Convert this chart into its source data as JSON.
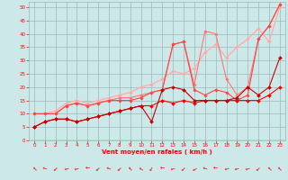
{
  "xlabel": "Vent moyen/en rafales ( km/h )",
  "x": [
    0,
    1,
    2,
    3,
    4,
    5,
    6,
    7,
    8,
    9,
    10,
    11,
    12,
    13,
    14,
    15,
    16,
    17,
    18,
    19,
    20,
    21,
    22,
    23
  ],
  "line_configs": [
    {
      "color": "#cc0000",
      "lw": 0.8,
      "ms": 2.0,
      "y": [
        5,
        7,
        8,
        8,
        7,
        8,
        9,
        10,
        11,
        12,
        13,
        7,
        19,
        20,
        19,
        15,
        15,
        15,
        15,
        16,
        20,
        17,
        20,
        31
      ]
    },
    {
      "color": "#ff0000",
      "lw": 0.8,
      "ms": 2.0,
      "y": [
        5,
        7,
        8,
        8,
        7,
        8,
        9,
        10,
        11,
        12,
        13,
        13,
        15,
        14,
        15,
        14,
        15,
        15,
        15,
        15,
        15,
        15,
        17,
        20
      ]
    },
    {
      "color": "#ff4444",
      "lw": 0.8,
      "ms": 1.8,
      "y": [
        10,
        10,
        10,
        13,
        14,
        13,
        14,
        15,
        15,
        15,
        16,
        18,
        19,
        36,
        37,
        19,
        17,
        19,
        18,
        15,
        17,
        38,
        43,
        51
      ]
    },
    {
      "color": "#ff7777",
      "lw": 0.8,
      "ms": 1.8,
      "y": [
        10,
        10,
        10,
        13,
        14,
        13,
        14,
        15,
        16,
        16,
        17,
        18,
        19,
        36,
        37,
        21,
        41,
        40,
        23,
        17,
        20,
        38,
        43,
        51
      ]
    },
    {
      "color": "#ffaaaa",
      "lw": 0.8,
      "ms": 1.8,
      "y": [
        10,
        10,
        11,
        14,
        15,
        14,
        15,
        16,
        17,
        18,
        20,
        21,
        23,
        26,
        25,
        27,
        33,
        36,
        31,
        35,
        38,
        42,
        37,
        50
      ]
    },
    {
      "color": "#ffcccc",
      "lw": 0.8,
      "ms": 1.8,
      "y": [
        10,
        10,
        11,
        14,
        15,
        14,
        15,
        16,
        17,
        18,
        20,
        21,
        23,
        26,
        25,
        27,
        33,
        36,
        31,
        35,
        38,
        42,
        37,
        50
      ]
    }
  ],
  "ylim": [
    0,
    52
  ],
  "xlim": [
    -0.5,
    23.5
  ],
  "yticks": [
    0,
    5,
    10,
    15,
    20,
    25,
    30,
    35,
    40,
    45,
    50
  ],
  "xticks": [
    0,
    1,
    2,
    3,
    4,
    5,
    6,
    7,
    8,
    9,
    10,
    11,
    12,
    13,
    14,
    15,
    16,
    17,
    18,
    19,
    20,
    21,
    22,
    23
  ],
  "bg_color": "#cce8e8",
  "grid_color": "#99bbbb",
  "tick_color": "#ff0000",
  "label_color": "#ff0000"
}
